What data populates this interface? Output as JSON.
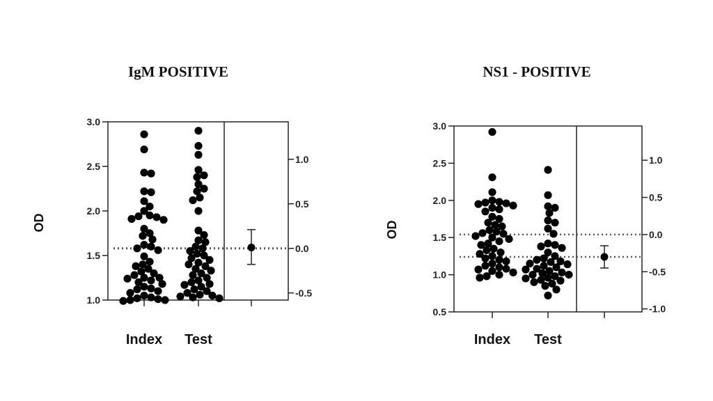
{
  "chart_data": [
    {
      "type": "scatter",
      "subtype": "estimation-plot",
      "title": "IgM POSITIVE",
      "ylabel": "OD",
      "categories": [
        "Index",
        "Test"
      ],
      "ylim": [
        1.0,
        3.0
      ],
      "yticks": [
        "1.0",
        "1.5",
        "2.0",
        "2.5",
        "3.0"
      ],
      "right_axis_ticks": [
        "-0.5",
        "0.0",
        "0.5",
        "1.0"
      ],
      "right_axis_zero_at_left": 1.58,
      "reference_lines_left_units": [
        1.58
      ],
      "series": [
        {
          "category": "Index",
          "values": [
            2.86,
            2.69,
            2.43,
            2.42,
            2.22,
            2.21,
            2.11,
            2.05,
            2.0,
            1.95,
            1.94,
            1.93,
            1.91,
            1.9,
            1.8,
            1.75,
            1.72,
            1.68,
            1.62,
            1.6,
            1.58,
            1.56,
            1.49,
            1.43,
            1.4,
            1.38,
            1.35,
            1.32,
            1.3,
            1.28,
            1.25,
            1.25,
            1.24,
            1.22,
            1.2,
            1.18,
            1.15,
            1.13,
            1.12,
            1.1,
            1.08,
            1.05,
            1.03,
            1.02,
            1.01,
            1.0,
            1.0,
            0.99
          ]
        },
        {
          "category": "Test",
          "values": [
            2.9,
            2.73,
            2.63,
            2.46,
            2.4,
            2.38,
            2.3,
            2.25,
            2.22,
            2.15,
            2.12,
            2.0,
            1.78,
            1.73,
            1.67,
            1.65,
            1.6,
            1.58,
            1.55,
            1.52,
            1.5,
            1.47,
            1.45,
            1.42,
            1.4,
            1.38,
            1.35,
            1.33,
            1.3,
            1.28,
            1.25,
            1.22,
            1.2,
            1.18,
            1.17,
            1.15,
            1.12,
            1.1,
            1.08,
            1.06,
            1.05,
            1.04,
            1.03,
            1.02
          ]
        }
      ],
      "difference": {
        "mean": 0.01,
        "ci": [
          -0.18,
          0.21
        ]
      }
    },
    {
      "type": "scatter",
      "subtype": "estimation-plot",
      "title": "NS1 - POSITIVE",
      "ylabel": "OD",
      "categories": [
        "Index",
        "Test"
      ],
      "ylim": [
        0.5,
        3.0
      ],
      "yticks": [
        "0.5",
        "1.0",
        "1.5",
        "2.0",
        "2.5",
        "3.0"
      ],
      "right_axis_ticks": [
        "-1.0",
        "-0.5",
        "0.0",
        "0.5",
        "1.0"
      ],
      "right_axis_zero_at_left": 1.54,
      "reference_lines_left_units": [
        1.54,
        1.24
      ],
      "series": [
        {
          "category": "Index",
          "values": [
            2.92,
            2.31,
            2.11,
            2.0,
            1.98,
            1.97,
            1.96,
            1.95,
            1.93,
            1.9,
            1.88,
            1.85,
            1.78,
            1.75,
            1.7,
            1.67,
            1.65,
            1.6,
            1.58,
            1.56,
            1.55,
            1.52,
            1.5,
            1.48,
            1.45,
            1.42,
            1.4,
            1.35,
            1.33,
            1.3,
            1.28,
            1.25,
            1.22,
            1.2,
            1.18,
            1.15,
            1.12,
            1.1,
            1.08,
            1.07,
            1.05,
            1.03,
            1.0,
            0.98,
            0.96
          ]
        },
        {
          "category": "Test",
          "values": [
            2.41,
            2.07,
            1.92,
            1.9,
            1.83,
            1.73,
            1.7,
            1.62,
            1.55,
            1.42,
            1.4,
            1.38,
            1.36,
            1.3,
            1.25,
            1.22,
            1.2,
            1.18,
            1.17,
            1.15,
            1.14,
            1.12,
            1.1,
            1.08,
            1.07,
            1.05,
            1.03,
            1.02,
            1.0,
            1.0,
            0.98,
            0.96,
            0.95,
            0.93,
            0.92,
            0.9,
            0.88,
            0.85,
            0.8,
            0.72
          ]
        }
      ],
      "difference": {
        "mean": -0.3,
        "ci": [
          -0.45,
          -0.15
        ]
      }
    }
  ]
}
